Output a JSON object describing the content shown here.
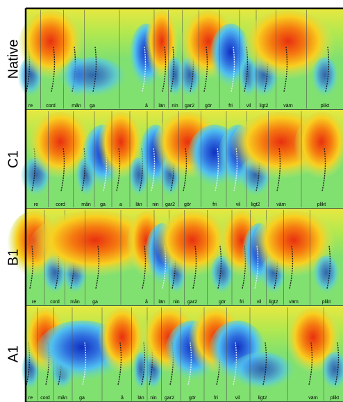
{
  "panels": [
    {
      "label": "Native",
      "words": [
        "re",
        "cord",
        "mån",
        "ga",
        "å",
        "län",
        "nin",
        "gar2",
        "gör",
        "fri",
        "vil",
        "ligt2",
        "värn",
        "plikt"
      ]
    },
    {
      "label": "C1",
      "words": [
        "re",
        "cord",
        "mån",
        "ga",
        "a",
        "län",
        "nin",
        "gar2",
        "gör",
        "fri",
        "vil",
        "ligt2",
        "värn",
        "plikt"
      ]
    },
    {
      "label": "B1",
      "words": [
        "re",
        "cord",
        "mån",
        "ga",
        "å",
        "län",
        "nin",
        "gar2",
        "gör",
        "fri",
        "vil",
        "ligt2",
        "värn",
        "plikt"
      ]
    },
    {
      "label": "A1",
      "words": [
        "re",
        "cord",
        "mån",
        "ga",
        "å",
        "län",
        "nin",
        "gar2",
        "gör",
        "fri",
        "vil",
        "ligt2",
        "värn",
        "plikt"
      ]
    }
  ]
}
